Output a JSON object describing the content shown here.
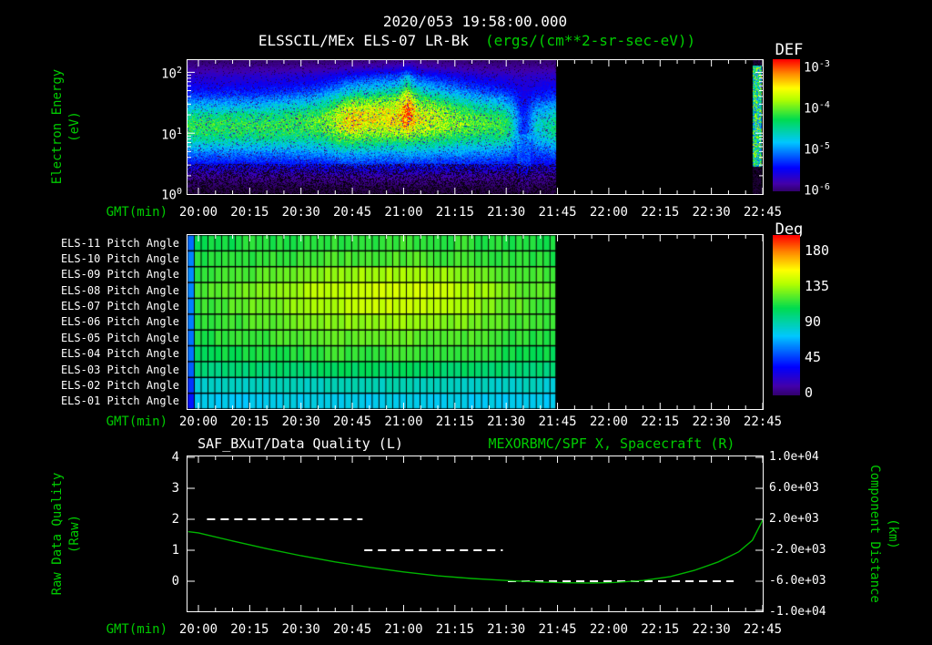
{
  "header": {
    "datetime": "2020/053 19:58:00.000",
    "instrument": "ELSSCIL/MEx ELS-07 LR-Bk",
    "units": "(ergs/(cm**2-sr-sec-eV))"
  },
  "colors": {
    "background": "#000000",
    "text": "#ffffff",
    "accent_green": "#00cc00",
    "curve_green": "#00b400",
    "colorbar_stops": [
      {
        "f": 0.0,
        "c": "#000000"
      },
      {
        "f": 0.05,
        "c": "#28004b"
      },
      {
        "f": 0.13,
        "c": "#4400aa"
      },
      {
        "f": 0.24,
        "c": "#0000ff"
      },
      {
        "f": 0.42,
        "c": "#00c8ff"
      },
      {
        "f": 0.58,
        "c": "#00dc50"
      },
      {
        "f": 0.72,
        "c": "#b4ff00"
      },
      {
        "f": 0.8,
        "c": "#ffff00"
      },
      {
        "f": 0.9,
        "c": "#ff8c00"
      },
      {
        "f": 1.0,
        "c": "#ff0000"
      }
    ]
  },
  "x_axis": {
    "label": "GMT(min)",
    "ticks": [
      "20:00",
      "20:15",
      "20:30",
      "20:45",
      "21:00",
      "21:15",
      "21:30",
      "21:45",
      "22:00",
      "22:15",
      "22:30",
      "22:45"
    ]
  },
  "panels": {
    "spectrogram": {
      "ylabel_line1": "Electron Energy",
      "ylabel_line2": "(eV)",
      "y_ticks": [
        {
          "base": "10",
          "exp": "2"
        },
        {
          "base": "10",
          "exp": "1"
        },
        {
          "base": "10",
          "exp": "0"
        }
      ],
      "colorbar_title": "DEF",
      "colorbar_ticks": [
        {
          "base": "10",
          "exp": "-3"
        },
        {
          "base": "10",
          "exp": "-4"
        },
        {
          "base": "10",
          "exp": "-5"
        },
        {
          "base": "10",
          "exp": "-6"
        }
      ]
    },
    "pitch": {
      "row_labels": [
        "ELS-11 Pitch Angle",
        "ELS-10 Pitch Angle",
        "ELS-09 Pitch Angle",
        "ELS-08 Pitch Angle",
        "ELS-07 Pitch Angle",
        "ELS-06 Pitch Angle",
        "ELS-05 Pitch Angle",
        "ELS-04 Pitch Angle",
        "ELS-03 Pitch Angle",
        "ELS-02 Pitch Angle",
        "ELS-01 Pitch Angle"
      ],
      "colorbar_title": "Deg",
      "colorbar_ticks": [
        "180",
        "135",
        "90",
        "45",
        "0"
      ]
    },
    "lines": {
      "title_left": "SAF_BXuT/Data Quality (L)",
      "title_right": "MEXORBMC/SPF X, Spacecraft (R)",
      "ylabel_left_line1": "Raw Data Quality",
      "ylabel_left_line2": "(Raw)",
      "ylabel_right_line1": "Component Distance",
      "ylabel_right_line2": "(km)",
      "left_ticks": [
        "4",
        "3",
        "2",
        "1",
        "0"
      ],
      "right_ticks": [
        "1.0e+04",
        "6.0e+03",
        "2.0e+03",
        "-2.0e+03",
        "-6.0e+03",
        "-1.0e+04"
      ]
    }
  },
  "chart_data": [
    {
      "id": "electron-energy-spectrogram",
      "type": "heatmap",
      "title": "ELSSCIL/MEx ELS-07 LR-Bk",
      "units": "ergs/(cm**2-sr-sec-eV)",
      "start_label": "2020/053 19:58:00.000",
      "t_unit": "minutes after 20:00 GMT",
      "y_axis": {
        "label": "Electron Energy (eV)",
        "scale": "log",
        "range_eV": [
          1,
          160
        ]
      },
      "color_axis": {
        "label": "DEF",
        "scale": "log",
        "range": [
          1e-06,
          0.001
        ]
      },
      "coverage_min": [
        [
          -3.2,
          104.5
        ],
        [
          162,
          164.5
        ]
      ],
      "features": {
        "main_band_eV": [
          5,
          40
        ],
        "band_center_eV": 14,
        "enhanced_flux_interval_min": [
          40,
          72
        ],
        "enhancement_peak_min": 58,
        "secondary_peak_min": 44,
        "dropout_min": [
          93,
          97
        ],
        "low_energy_dark_below_eV": 3,
        "background_level": 1e-05,
        "peak_level": 0.0002
      }
    },
    {
      "id": "pitch-angle-panels",
      "type": "heatmap",
      "units": "deg",
      "t_unit": "minutes after 20:00 GMT",
      "rows": [
        "ELS-11",
        "ELS-10",
        "ELS-09",
        "ELS-08",
        "ELS-07",
        "ELS-06",
        "ELS-05",
        "ELS-04",
        "ELS-03",
        "ELS-02",
        "ELS-01"
      ],
      "color_axis": {
        "label": "Deg",
        "range": [
          0,
          180
        ],
        "ticks": [
          180,
          135,
          90,
          45,
          0
        ]
      },
      "sample_times_min": [
        0,
        15,
        30,
        45,
        60,
        75,
        90,
        105
      ],
      "values_deg": [
        [
          100,
          102,
          104,
          105,
          106,
          105,
          103,
          100
        ],
        [
          102,
          104,
          107,
          109,
          110,
          108,
          105,
          102
        ],
        [
          105,
          110,
          116,
          122,
          124,
          120,
          112,
          106
        ],
        [
          108,
          115,
          124,
          130,
          132,
          127,
          116,
          108
        ],
        [
          106,
          113,
          121,
          128,
          130,
          124,
          114,
          106
        ],
        [
          104,
          109,
          115,
          120,
          121,
          117,
          110,
          104
        ],
        [
          102,
          106,
          110,
          113,
          114,
          111,
          106,
          102
        ],
        [
          98,
          101,
          104,
          106,
          106,
          104,
          101,
          98
        ],
        [
          90,
          92,
          94,
          95,
          95,
          94,
          92,
          90
        ],
        [
          76,
          77,
          78,
          79,
          79,
          78,
          77,
          76
        ],
        [
          68,
          69,
          70,
          70,
          70,
          70,
          69,
          68
        ]
      ],
      "coverage_min": [
        -3.2,
        104.5
      ],
      "cell_minutes": 2
    },
    {
      "id": "quality-and-spacecraft-x",
      "type": "line",
      "t_unit": "minutes after 20:00 GMT",
      "series": [
        {
          "name": "SAF_BXuT/Data Quality (L)",
          "axis": "left",
          "style": "dashed",
          "color": "#ffffff",
          "segments": [
            {
              "t_min": [
                2.5,
                48
              ],
              "value": 2
            },
            {
              "t_min": [
                48.5,
                89
              ],
              "value": 1
            },
            {
              "t_min": [
                90.5,
                156.5
              ],
              "value": 0
            }
          ]
        },
        {
          "name": "MEXORBMC/SPF X, Spacecraft (R)",
          "axis": "right",
          "style": "solid",
          "color": "#00b400",
          "points_min_km": [
            [
              -3,
              400
            ],
            [
              0,
              250
            ],
            [
              10,
              -800
            ],
            [
              20,
              -1800
            ],
            [
              30,
              -2700
            ],
            [
              40,
              -3500
            ],
            [
              50,
              -4200
            ],
            [
              60,
              -4800
            ],
            [
              70,
              -5300
            ],
            [
              80,
              -5650
            ],
            [
              90,
              -5900
            ],
            [
              100,
              -6100
            ],
            [
              108,
              -6200
            ],
            [
              115,
              -6230
            ],
            [
              122,
              -6150
            ],
            [
              130,
              -5900
            ],
            [
              138,
              -5400
            ],
            [
              145,
              -4600
            ],
            [
              152,
              -3500
            ],
            [
              158,
              -2200
            ],
            [
              162,
              -700
            ],
            [
              165,
              1900
            ]
          ]
        }
      ],
      "left_axis": {
        "label": "Raw Data Quality (Raw)",
        "ticks": [
          4,
          3,
          2,
          1,
          0
        ],
        "range": [
          -0.94,
          4.03
        ]
      },
      "right_axis": {
        "label": "Component Distance (km)",
        "ticks": [
          10000,
          6000,
          2000,
          -2000,
          -6000,
          -10000
        ],
        "range": [
          -10000,
          10000
        ]
      },
      "x_axis": {
        "label": "GMT(min)",
        "tick_labels": [
          "20:00",
          "20:15",
          "20:30",
          "20:45",
          "21:00",
          "21:15",
          "21:30",
          "21:45",
          "22:00",
          "22:15",
          "22:30",
          "22:45"
        ]
      }
    }
  ]
}
